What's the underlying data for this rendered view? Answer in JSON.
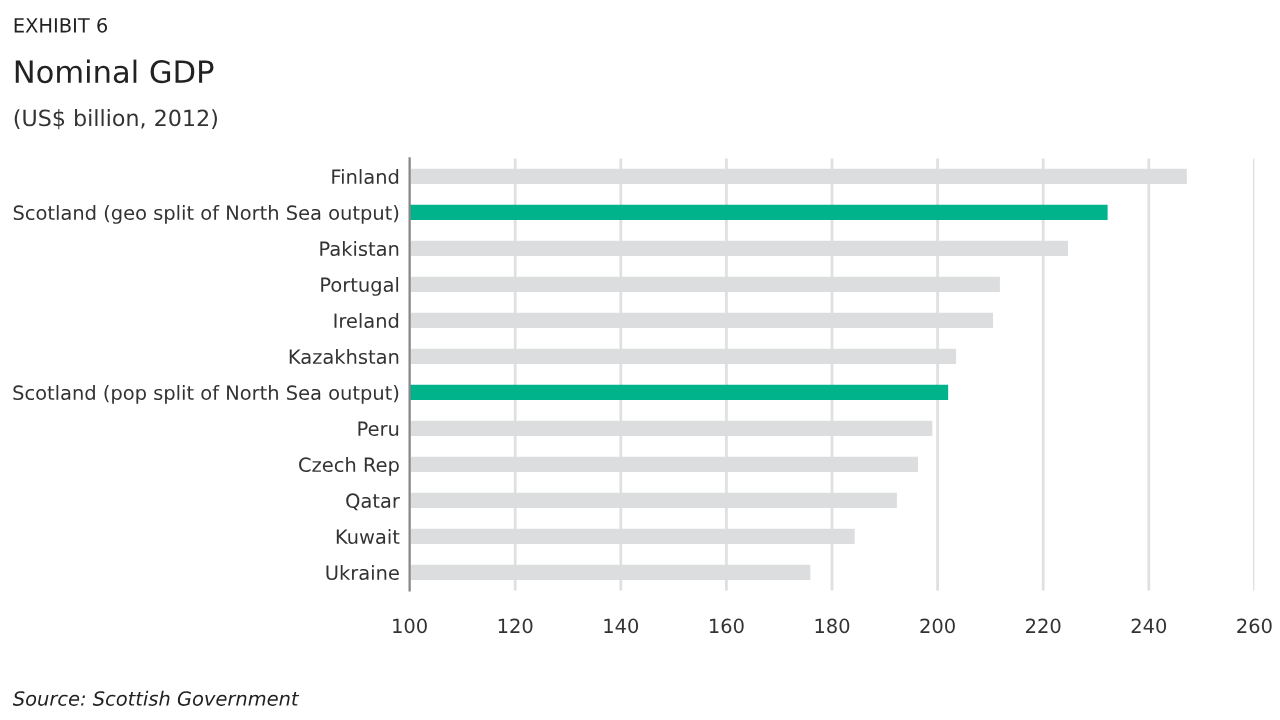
{
  "chart_data": {
    "type": "bar",
    "orientation": "horizontal",
    "title": "Nominal GDP",
    "subtitle": "(US$ billion, 2012)",
    "annotations": [
      "EXHIBIT 6",
      "Source: Scottish Government"
    ],
    "categories": [
      "Finland",
      "Scotland (geo split of North Sea output)",
      "Pakistan",
      "Portugal",
      "Ireland",
      "Kazakhstan",
      "Scotland (pop split of North Sea output)",
      "Peru",
      "Czech Rep",
      "Qatar",
      "Kuwait",
      "Ukraine"
    ],
    "values": [
      247.2,
      232.2,
      224.7,
      211.8,
      210.5,
      203.5,
      202.0,
      199.0,
      196.3,
      192.3,
      184.3,
      175.9
    ],
    "colors": [
      "#dcdddf",
      "#00b38a",
      "#dcdddf",
      "#dcdddf",
      "#dcdddf",
      "#dcdddf",
      "#00b38a",
      "#dcdddf",
      "#dcdddf",
      "#dcdddf",
      "#dcdddf",
      "#dcdddf"
    ],
    "xlim": [
      100,
      260
    ],
    "xticks": [
      100,
      120,
      140,
      160,
      180,
      200,
      220,
      240,
      260
    ],
    "grid": "x"
  }
}
